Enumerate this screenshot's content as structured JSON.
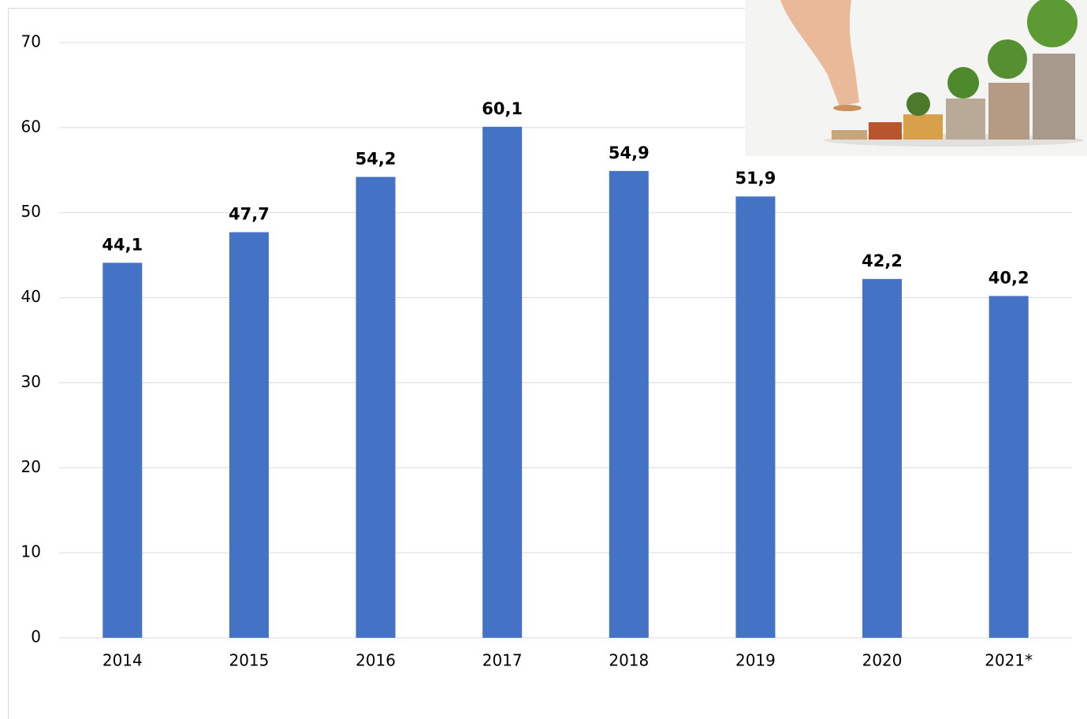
{
  "chart_data": {
    "type": "bar",
    "categories": [
      "2014",
      "2015",
      "2016",
      "2017",
      "2018",
      "2019",
      "2020",
      "2021*"
    ],
    "values": [
      44.1,
      47.7,
      54.2,
      60.1,
      54.9,
      51.9,
      42.2,
      40.2
    ],
    "value_labels": [
      "44,1",
      "47,7",
      "54,2",
      "60,1",
      "54,9",
      "51,9",
      "42,2",
      "40,2"
    ],
    "color": "#4472c4",
    "ylim": [
      0,
      70
    ],
    "yticks": [
      0,
      10,
      20,
      30,
      40,
      50,
      60,
      70
    ],
    "grid": true
  }
}
